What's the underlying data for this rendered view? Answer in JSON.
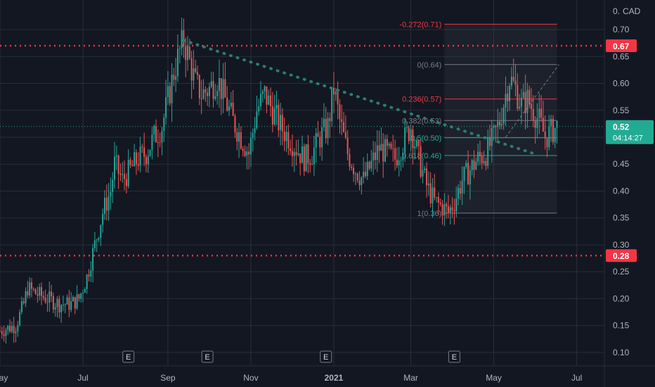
{
  "chart_data": {
    "type": "candlestick",
    "currency": "CAD",
    "y_currency_tick": "0.",
    "ylim": [
      0.075,
      0.755
    ],
    "y_ticks": [
      "0.70",
      "0.65",
      "0.60",
      "0.55",
      "0.50",
      "0.45",
      "0.40",
      "0.35",
      "0.30",
      "0.25",
      "0.20",
      "0.15",
      "0.10"
    ],
    "x_ticks": [
      {
        "label": "May",
        "bold": false,
        "index": 0
      },
      {
        "label": "Jul",
        "bold": false,
        "index": 42
      },
      {
        "label": "Sep",
        "bold": false,
        "index": 85
      },
      {
        "label": "Nov",
        "bold": false,
        "index": 127
      },
      {
        "label": "2021",
        "bold": true,
        "index": 169
      },
      {
        "label": "Mar",
        "bold": false,
        "index": 208
      },
      {
        "label": "May",
        "bold": false,
        "index": 250
      },
      {
        "label": "Jul",
        "bold": false,
        "index": 292
      }
    ],
    "x_index_range": [
      0,
      306
    ],
    "horizontal_levels": [
      {
        "value": 0.67,
        "label": "0.67",
        "color": "#f23645"
      },
      {
        "value": 0.28,
        "label": "0.28",
        "color": "#f23645"
      }
    ],
    "last_price": {
      "value": 0.52,
      "label": "0.52",
      "countdown": "04:14:27",
      "color": "#22ab94"
    },
    "fibonacci": {
      "start_index": 225,
      "end_index": 282,
      "levels": [
        {
          "label": "-0.272(0.71)",
          "value": 0.71,
          "color": "#f23645"
        },
        {
          "label": "0(0.64)",
          "value": 0.635,
          "color": "#787b86"
        },
        {
          "label": "0.236(0.57)",
          "value": 0.571,
          "color": "#f23645"
        },
        {
          "label": "0.382(0.53)",
          "value": 0.531,
          "color": "#787b86"
        },
        {
          "label": "0.5(0.50)",
          "value": 0.499,
          "color": "#22ab94"
        },
        {
          "label": "0.618(0.46)",
          "value": 0.466,
          "color": "#22ab94"
        },
        {
          "label": "1(0.36)",
          "value": 0.359,
          "color": "#787b86"
        }
      ]
    },
    "trendline": {
      "from": {
        "index": 93,
        "value": 0.68
      },
      "to": {
        "index": 270,
        "value": 0.47
      },
      "color": "#2a7d74"
    },
    "fib_diagonal": {
      "from": {
        "index": 256,
        "value": 0.5
      },
      "to": {
        "index": 283,
        "value": 0.635
      },
      "color": "#787b86"
    },
    "earnings_markers": [
      {
        "label": "E",
        "index": 65
      },
      {
        "label": "E",
        "index": 105
      },
      {
        "label": "E",
        "index": 165
      },
      {
        "label": "E",
        "index": 230
      }
    ],
    "colors": {
      "up": "#26a69a",
      "down": "#ef5350",
      "background": "#131722",
      "grid": "#2a2e39"
    },
    "price_path": [
      [
        0,
        0.14
      ],
      [
        8,
        0.15
      ],
      [
        12,
        0.19
      ],
      [
        14,
        0.22
      ],
      [
        18,
        0.21
      ],
      [
        24,
        0.2
      ],
      [
        30,
        0.19
      ],
      [
        36,
        0.19
      ],
      [
        40,
        0.2
      ],
      [
        44,
        0.24
      ],
      [
        48,
        0.3
      ],
      [
        52,
        0.36
      ],
      [
        56,
        0.4
      ],
      [
        58,
        0.45
      ],
      [
        62,
        0.42
      ],
      [
        66,
        0.44
      ],
      [
        70,
        0.46
      ],
      [
        74,
        0.47
      ],
      [
        78,
        0.5
      ],
      [
        82,
        0.52
      ],
      [
        85,
        0.57
      ],
      [
        88,
        0.62
      ],
      [
        91,
        0.66
      ],
      [
        93,
        0.68
      ],
      [
        96,
        0.64
      ],
      [
        99,
        0.6
      ],
      [
        102,
        0.58
      ],
      [
        106,
        0.59
      ],
      [
        110,
        0.61
      ],
      [
        114,
        0.57
      ],
      [
        118,
        0.53
      ],
      [
        122,
        0.5
      ],
      [
        126,
        0.47
      ],
      [
        130,
        0.55
      ],
      [
        134,
        0.58
      ],
      [
        138,
        0.55
      ],
      [
        142,
        0.52
      ],
      [
        146,
        0.5
      ],
      [
        150,
        0.48
      ],
      [
        154,
        0.46
      ],
      [
        158,
        0.47
      ],
      [
        162,
        0.5
      ],
      [
        166,
        0.52
      ],
      [
        169,
        0.59
      ],
      [
        172,
        0.53
      ],
      [
        176,
        0.47
      ],
      [
        180,
        0.44
      ],
      [
        184,
        0.42
      ],
      [
        188,
        0.45
      ],
      [
        192,
        0.48
      ],
      [
        196,
        0.47
      ],
      [
        200,
        0.46
      ],
      [
        204,
        0.49
      ],
      [
        208,
        0.52
      ],
      [
        212,
        0.46
      ],
      [
        216,
        0.41
      ],
      [
        220,
        0.38
      ],
      [
        224,
        0.37
      ],
      [
        227,
        0.36
      ],
      [
        230,
        0.38
      ],
      [
        234,
        0.42
      ],
      [
        238,
        0.44
      ],
      [
        242,
        0.46
      ],
      [
        246,
        0.47
      ],
      [
        250,
        0.5
      ],
      [
        253,
        0.53
      ],
      [
        256,
        0.58
      ],
      [
        258,
        0.61
      ],
      [
        261,
        0.59
      ],
      [
        264,
        0.56
      ],
      [
        267,
        0.57
      ],
      [
        270,
        0.55
      ],
      [
        273,
        0.53
      ],
      [
        276,
        0.5
      ],
      [
        279,
        0.51
      ],
      [
        282,
        0.52
      ]
    ]
  }
}
